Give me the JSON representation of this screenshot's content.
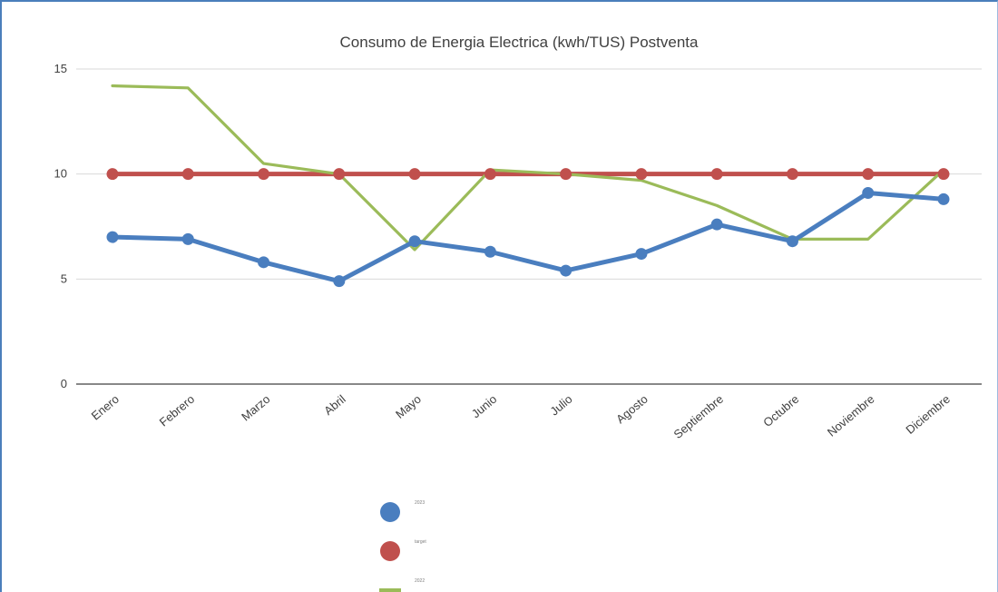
{
  "chart_data": {
    "type": "line",
    "title": "Consumo de Energia Electrica (kwh/TUS)  Postventa",
    "xlabel": "",
    "ylabel": "",
    "ylim": [
      0,
      15
    ],
    "yticks": [
      "0",
      "5",
      "10",
      "15"
    ],
    "grid": true,
    "legend_position": "bottom-left",
    "categories": [
      "Enero",
      "Febrero",
      "Marzo",
      "Abril",
      "Mayo",
      "Junio",
      "Julio",
      "Agosto",
      "Septiembre",
      "Octubre",
      "Noviembre",
      "Diciembre"
    ],
    "series": [
      {
        "name": "2023",
        "color": "#4a7ebf",
        "markers": true,
        "values": [
          7.0,
          6.9,
          5.8,
          4.9,
          6.8,
          6.3,
          5.4,
          6.2,
          7.6,
          6.8,
          9.1,
          8.8
        ]
      },
      {
        "name": "target",
        "color": "#c0504d",
        "markers": true,
        "values": [
          10,
          10,
          10,
          10,
          10,
          10,
          10,
          10,
          10,
          10,
          10,
          10
        ]
      },
      {
        "name": "2022",
        "color": "#9bbb59",
        "markers": false,
        "values": [
          14.2,
          14.1,
          10.5,
          10.0,
          6.4,
          10.2,
          10.0,
          9.7,
          8.5,
          6.9,
          6.9,
          10.2
        ]
      }
    ]
  }
}
